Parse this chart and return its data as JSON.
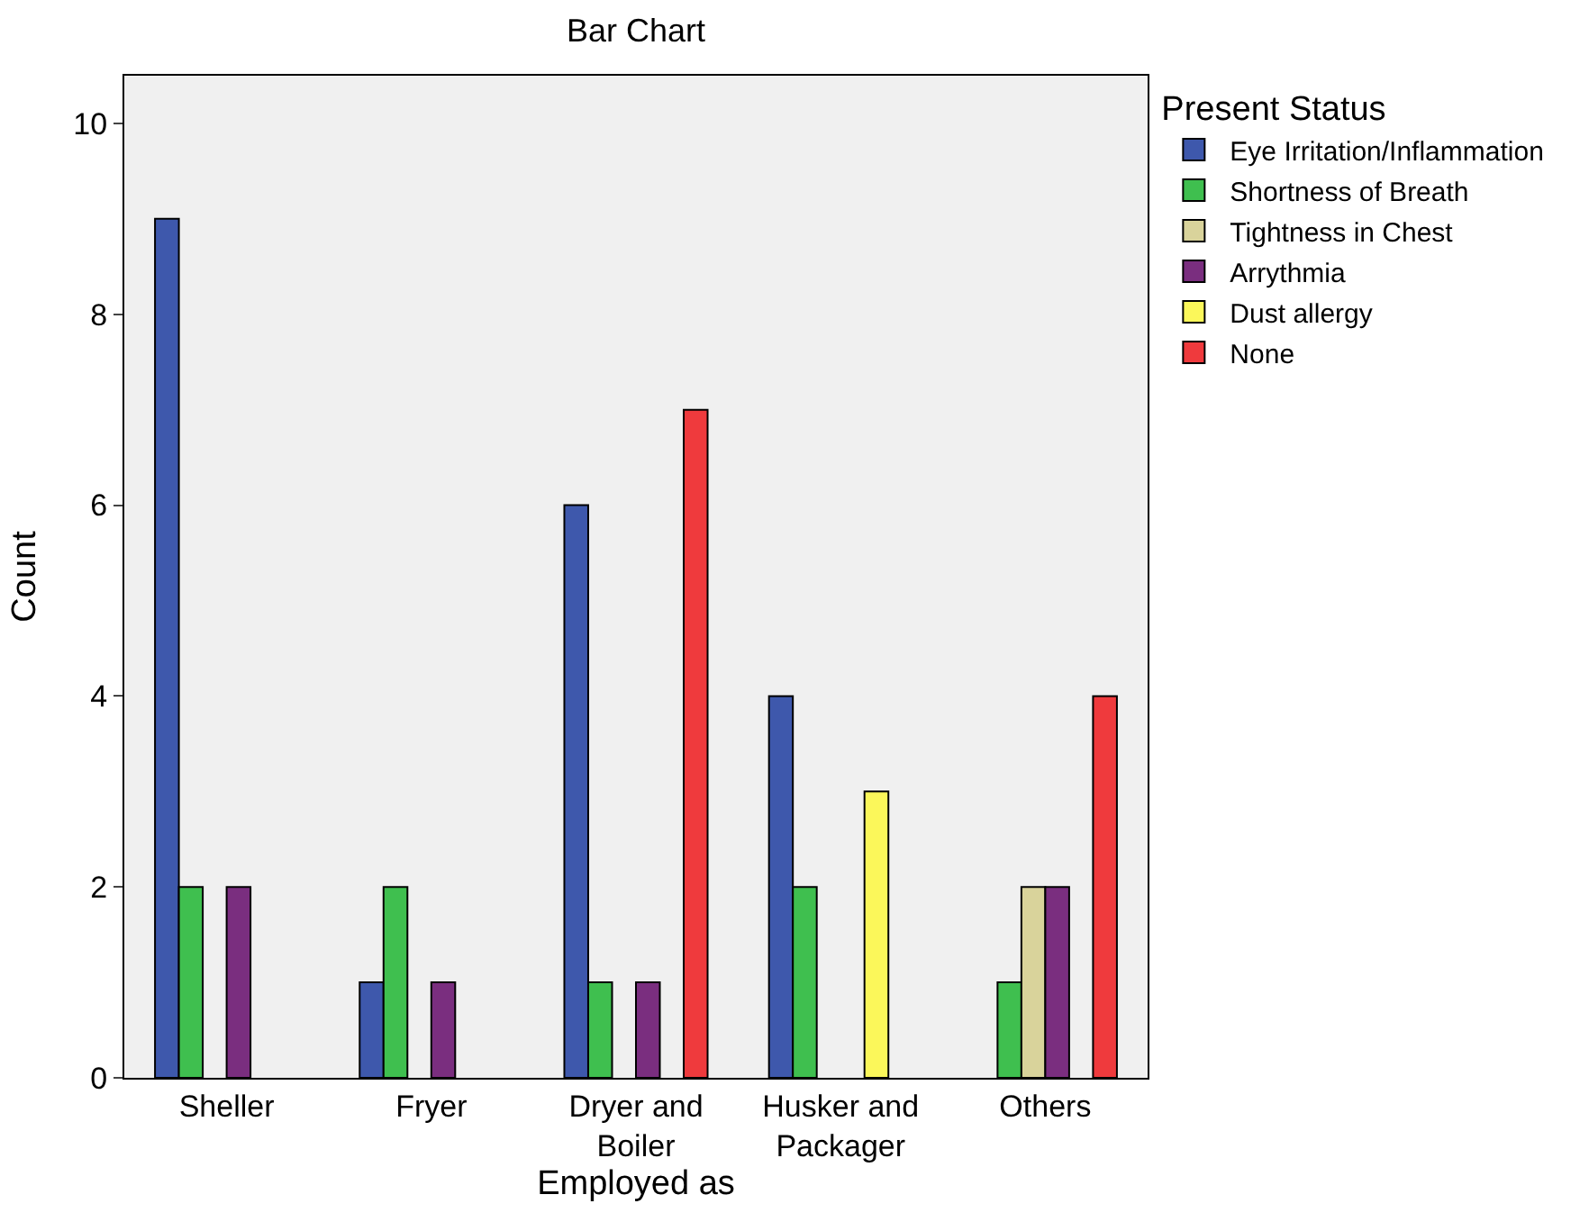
{
  "chart_data": {
    "type": "bar",
    "title": "Bar Chart",
    "xlabel": "Employed as",
    "ylabel": "Count",
    "legend_title": "Present Status",
    "categories": [
      "Sheller",
      "Fryer",
      "Dryer and Boiler",
      "Husker and Packager",
      "Others"
    ],
    "series": [
      {
        "name": "Eye Irritation/Inflammation",
        "color": "#3e58ac",
        "values": [
          9,
          1,
          6,
          4,
          null
        ]
      },
      {
        "name": "Shortness of Breath",
        "color": "#3fbf4f",
        "values": [
          2,
          2,
          1,
          2,
          1
        ]
      },
      {
        "name": "Tightness in Chest",
        "color": "#d9d39b",
        "values": [
          null,
          null,
          null,
          null,
          2
        ]
      },
      {
        "name": "Arrythmia",
        "color": "#7a2e7f",
        "values": [
          2,
          1,
          1,
          null,
          2
        ]
      },
      {
        "name": "Dust allergy",
        "color": "#fbf75a",
        "values": [
          null,
          null,
          null,
          3,
          null
        ]
      },
      {
        "name": "None",
        "color": "#ef3a3d",
        "values": [
          null,
          null,
          7,
          null,
          4
        ]
      }
    ],
    "ylim": [
      0,
      10.5
    ],
    "yticks": [
      0,
      2,
      4,
      6,
      8,
      10
    ],
    "grid": false,
    "legend": "top right"
  }
}
